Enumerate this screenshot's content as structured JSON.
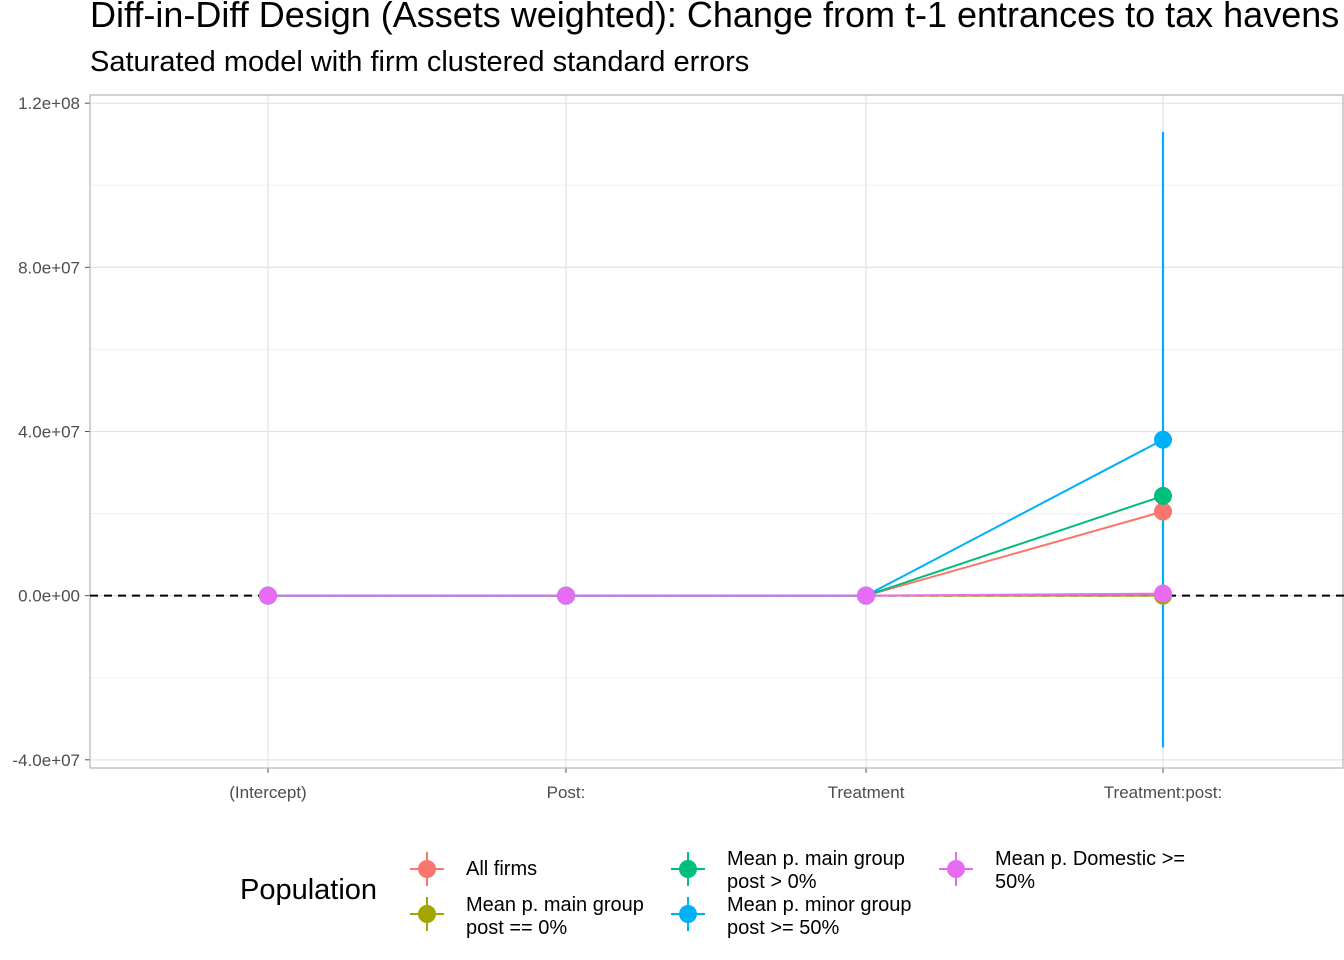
{
  "chart_data": {
    "type": "scatter",
    "title": "Diff-in-Diff Design (Assets weighted): Change from t-1 entrances to tax havens",
    "subtitle": "Saturated model with firm clustered standard errors",
    "xlabel": "",
    "ylabel": "",
    "categories": [
      "(Intercept)",
      "Post:",
      "Treatment",
      "Treatment:post:"
    ],
    "ylim": [
      -42000000,
      122000000
    ],
    "yticks": [
      -40000000,
      0,
      40000000,
      80000000,
      120000000
    ],
    "ytick_labels": [
      "-4.0e+07",
      "0.0e+00",
      "4.0e+07",
      "8.0e+07",
      "1.2e+08"
    ],
    "reference_line": 0,
    "grid": true,
    "legend": {
      "title": "Population",
      "placement": "bottom"
    },
    "series": [
      {
        "name": "All firms",
        "color": "#F8766D",
        "values": [
          0,
          0,
          0,
          20500000
        ],
        "lower": [
          0,
          0,
          0,
          0
        ],
        "upper": [
          0,
          0,
          0,
          0
        ]
      },
      {
        "name": "Mean p. main group\npost == 0%",
        "color": "#A3A500",
        "values": [
          0,
          0,
          0,
          0
        ],
        "lower": [
          0,
          0,
          0,
          0
        ],
        "upper": [
          0,
          0,
          0,
          0
        ]
      },
      {
        "name": "Mean p. main group\npost > 0%",
        "color": "#00BF7D",
        "values": [
          0,
          0,
          0,
          24300000
        ],
        "lower": [
          0,
          0,
          0,
          0
        ],
        "upper": [
          0,
          0,
          0,
          0
        ]
      },
      {
        "name": "Mean p. minor group\npost >= 50%",
        "color": "#00B0F6",
        "values": [
          0,
          0,
          0,
          38000000
        ],
        "lower": [
          0,
          0,
          0,
          -37000000
        ],
        "upper": [
          0,
          0,
          0,
          113000000
        ]
      },
      {
        "name": "Mean p. Domestic >=\n50%",
        "color": "#E76BF3",
        "values": [
          0,
          0,
          0,
          500000
        ],
        "lower": [
          0,
          0,
          0,
          0
        ],
        "upper": [
          0,
          0,
          0,
          0
        ]
      }
    ]
  }
}
